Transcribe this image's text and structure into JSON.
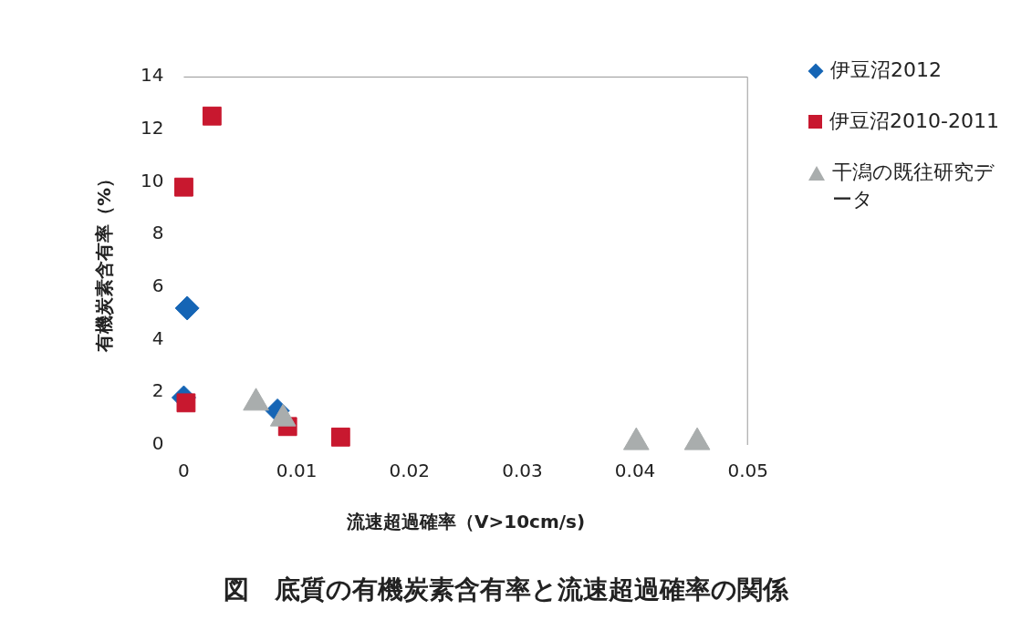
{
  "chart_data": {
    "type": "scatter",
    "title": "図　底質の有機炭素含有率と流速超過確率の関係",
    "xlabel": "流速超過確率（V>10cm/s)",
    "ylabel": "有機炭素含有率（%）",
    "xlim": [
      0,
      0.05
    ],
    "xticks": [
      0,
      0.01,
      0.02,
      0.03,
      0.04,
      0.05
    ],
    "ylim": [
      0,
      14
    ],
    "yticks": [
      0,
      2,
      4,
      6,
      8,
      10,
      12,
      14
    ],
    "grid": false,
    "legend": "right",
    "series": [
      {
        "name": "伊豆沼2012",
        "color": "#1565b5",
        "marker": "diamond",
        "x": [
          0.0003,
          0,
          0.0083
        ],
        "values": [
          5.2,
          1.8,
          1.3
        ]
      },
      {
        "name": "伊豆沼2010-2011",
        "color": "#c8182f",
        "marker": "square",
        "x": [
          0.0025,
          0,
          0.0002,
          0.0092,
          0.0139
        ],
        "values": [
          12.5,
          9.8,
          1.6,
          0.7,
          0.3
        ]
      },
      {
        "name": "干潟の既往研究データ",
        "color": "#a9adad",
        "marker": "triangle",
        "x": [
          0.0064,
          0.0088,
          0.0401,
          0.0455
        ],
        "values": [
          1.6,
          1.0,
          0.1,
          0.1
        ]
      }
    ]
  }
}
